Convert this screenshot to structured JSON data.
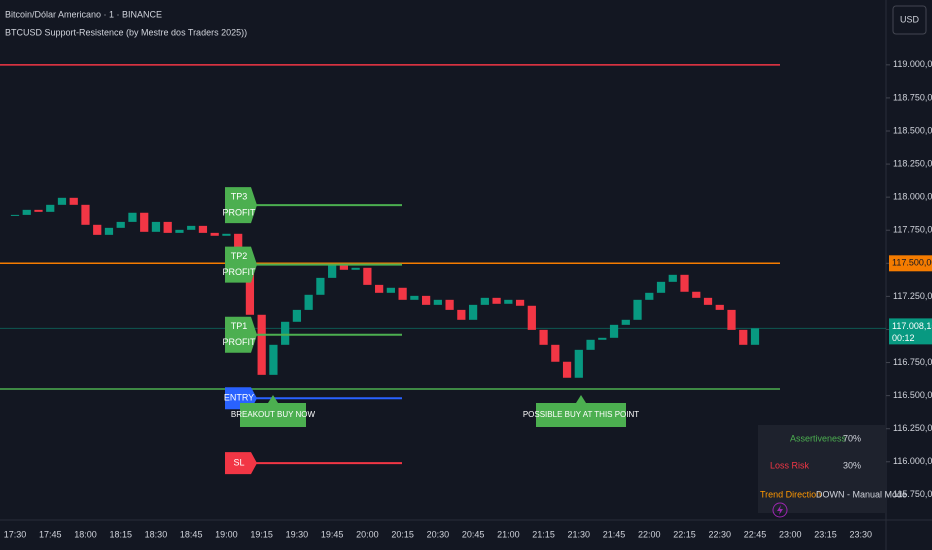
{
  "chart_data": {
    "type": "candlestick",
    "title": "Bitcoin/Dólar Americano · 1 · BINANCE",
    "subtitle": "BTCUSD Support-Resistence (by Mestre dos Traders 2025))",
    "currency": "USD",
    "up_color": "#089981",
    "down_color": "#f23645",
    "x": [
      "17:30",
      "17:35",
      "17:40",
      "17:45",
      "17:50",
      "17:55",
      "18:00",
      "18:05",
      "18:10",
      "18:15",
      "18:20",
      "18:25",
      "18:30",
      "18:35",
      "18:40",
      "18:45",
      "18:50",
      "18:55",
      "19:00",
      "19:05",
      "19:10",
      "19:15",
      "19:20",
      "19:25",
      "19:30",
      "19:35",
      "19:40",
      "19:45",
      "19:50",
      "19:55",
      "20:00",
      "20:05",
      "20:10",
      "20:15",
      "20:20",
      "20:25",
      "20:30",
      "20:35",
      "20:40",
      "20:45",
      "20:50",
      "20:55",
      "21:00",
      "21:05",
      "21:10",
      "21:15",
      "21:20",
      "21:25",
      "21:30",
      "21:35",
      "21:40",
      "21:45",
      "21:50",
      "21:55",
      "22:00",
      "22:05",
      "22:10",
      "22:15",
      "22:20",
      "22:25",
      "22:30",
      "22:35",
      "22:40",
      "22:45"
    ],
    "close": [
      117866,
      117904,
      117889,
      117942,
      117995,
      117942,
      117791,
      117715,
      117768,
      117813,
      117882,
      117738,
      117813,
      117730,
      117753,
      117783,
      117730,
      117708,
      117723,
      117511,
      117111,
      116657,
      116884,
      117058,
      117148,
      117262,
      117390,
      117489,
      117451,
      117466,
      117337,
      117277,
      117315,
      117224,
      117254,
      117186,
      117224,
      117148,
      117073,
      117186,
      117239,
      117194,
      117224,
      117179,
      116997,
      116884,
      116756,
      116635,
      116846,
      116922,
      116937,
      117035,
      117073,
      117224,
      117277,
      117360,
      117413,
      117285,
      117239,
      117186,
      117148,
      116997,
      116884,
      117008.15
    ],
    "ylim": [
      115560,
      119490
    ],
    "yticks": [
      {
        "value": 115750,
        "label": "115.750,00"
      },
      {
        "value": 116000,
        "label": "116.000,00"
      },
      {
        "value": 116250,
        "label": "116.250,00"
      },
      {
        "value": 116500,
        "label": "116.500,00"
      },
      {
        "value": 116750,
        "label": "116.750,00"
      },
      {
        "value": 117000,
        "label": "117.000,00"
      },
      {
        "value": 117250,
        "label": "117.250,00"
      },
      {
        "value": 117500,
        "label": "117.500,00"
      },
      {
        "value": 117750,
        "label": "117.750,00"
      },
      {
        "value": 118000,
        "label": "118.000,00"
      },
      {
        "value": 118250,
        "label": "118.250,00"
      },
      {
        "value": 118500,
        "label": "118.500,00"
      },
      {
        "value": 118750,
        "label": "118.750,00"
      },
      {
        "value": 119000,
        "label": "119.000,00"
      }
    ],
    "xticks": [
      "17:30",
      "17:45",
      "18:00",
      "18:15",
      "18:30",
      "18:45",
      "19:00",
      "19:15",
      "19:30",
      "19:45",
      "20:00",
      "20:15",
      "20:30",
      "20:45",
      "21:00",
      "21:15",
      "21:30",
      "21:45",
      "22:00",
      "22:15",
      "22:30",
      "22:45",
      "23:00",
      "23:15",
      "23:30"
    ],
    "levels": [
      {
        "value": 119000,
        "color": "#f23645"
      },
      {
        "value": 117500,
        "color": "#f57c00",
        "label": "117.500,00"
      },
      {
        "value": 116550,
        "color": "#4caf50"
      }
    ],
    "last_price": {
      "value": 117008.15,
      "label": "117.008,15",
      "countdown": "00:12",
      "color": "#089981"
    },
    "trade_levels": [
      {
        "name": "TP3",
        "sub": "PROFIT",
        "value": 117940,
        "color": "#4caf50"
      },
      {
        "name": "TP2",
        "sub": "PROFIT",
        "value": 117490,
        "color": "#4caf50"
      },
      {
        "name": "TP1",
        "sub": "PROFIT",
        "value": 116960,
        "color": "#4caf50"
      },
      {
        "name": "ENTRY",
        "value": 116480,
        "color": "#2962ff"
      },
      {
        "name": "SL",
        "value": 115990,
        "color": "#f23645"
      }
    ],
    "annotations": [
      {
        "text": "BREAKOUT BUY NOW",
        "value": 116550
      },
      {
        "text": "POSSIBLE BUY AT THIS POINT",
        "value": 116550
      }
    ]
  },
  "info_table": {
    "rows": [
      [
        "Assertiveness",
        "70%"
      ],
      [
        "Loss Risk",
        "30%"
      ],
      [
        "Trend Direction",
        "DOWN - Manual Mode"
      ]
    ]
  }
}
